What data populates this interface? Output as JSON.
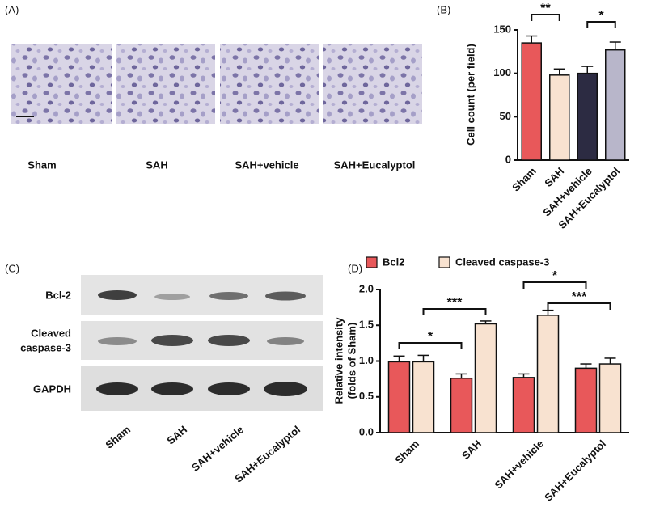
{
  "panel_a": {
    "label": "(A)",
    "groups": [
      "Sham",
      "SAH",
      "SAH+vehicle",
      "SAH+Eucalyptol"
    ]
  },
  "panel_c": {
    "label": "(C)",
    "rows": [
      [
        "Bcl-2"
      ],
      [
        "Cleaved",
        "caspase-3"
      ],
      [
        "GAPDH"
      ]
    ],
    "groups": [
      "Sham",
      "SAH",
      "SAH+vehicle",
      "SAH+Eucalyptol"
    ]
  },
  "chart_data": [
    {
      "type": "bar",
      "panel": "(B)",
      "ylabel": "Cell count (per field)",
      "categories": [
        "Sham",
        "SAH",
        "SAH+vehicle",
        "SAH+Eucalyptol"
      ],
      "values": [
        135,
        98,
        100,
        127
      ],
      "errors": [
        8,
        7,
        8,
        9
      ],
      "colors": [
        "#e8585a",
        "#f8e2d0",
        "#2c2b42",
        "#b8b6ca"
      ],
      "ylim": [
        0,
        150
      ],
      "yticks": [
        0,
        50,
        100,
        150
      ],
      "annotations": [
        "**",
        "*"
      ]
    },
    {
      "type": "grouped_bar",
      "panel": "(D)",
      "ylabel": [
        "Relative intensity",
        "(folds of Sham)"
      ],
      "categories": [
        "Sham",
        "SAH",
        "SAH+vehicle",
        "SAH+Eucalyptol"
      ],
      "series": [
        {
          "name": "Bcl2",
          "color": "#e8585a",
          "values": [
            0.99,
            0.76,
            0.77,
            0.9
          ],
          "errors": [
            0.08,
            0.06,
            0.05,
            0.06
          ]
        },
        {
          "name": "Cleaved caspase-3",
          "color": "#f8e2d0",
          "values": [
            0.99,
            1.52,
            1.64,
            0.96
          ],
          "errors": [
            0.09,
            0.04,
            0.07,
            0.08
          ]
        }
      ],
      "ylim": [
        0,
        2
      ],
      "yticks": [
        {
          "value": 0,
          "label": "0.0"
        },
        0.5,
        {
          "value": 1,
          "label": "1.0"
        },
        1.5,
        {
          "value": 2,
          "label": "2.0"
        }
      ],
      "annotations": [
        "***",
        "*",
        "*",
        "***"
      ]
    }
  ]
}
